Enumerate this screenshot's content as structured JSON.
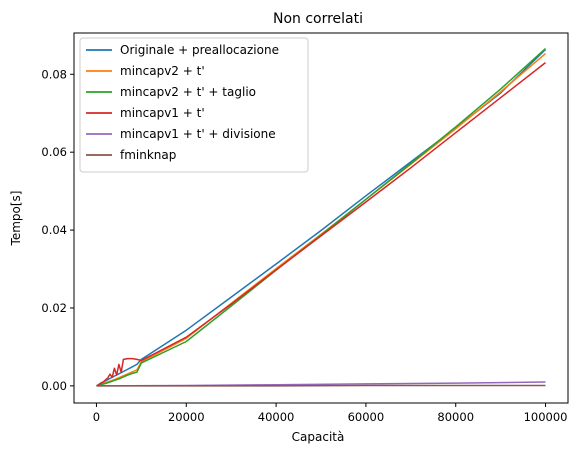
{
  "chart_data": {
    "type": "line",
    "title": "Non correlati",
    "xlabel": "Capacità",
    "ylabel": "Tempo[s]",
    "xlim": [
      -5000,
      105000
    ],
    "ylim": [
      -0.0044,
      0.0906
    ],
    "xticks": [
      0,
      20000,
      40000,
      60000,
      80000,
      100000
    ],
    "xtick_labels": [
      "0",
      "20000",
      "40000",
      "60000",
      "80000",
      "100000"
    ],
    "yticks": [
      0.0,
      0.02,
      0.04,
      0.06,
      0.08
    ],
    "ytick_labels": [
      "0.00",
      "0.02",
      "0.04",
      "0.06",
      "0.08"
    ],
    "grid": false,
    "legend_position": "top-left",
    "series": [
      {
        "name": "Originale + preallocazione",
        "color": "#1f77b4",
        "x": [
          0,
          1000,
          2000,
          3000,
          4000,
          5000,
          6000,
          7000,
          8000,
          9000,
          10000,
          20000,
          30000,
          40000,
          50000,
          60000,
          70000,
          80000,
          90000,
          100000
        ],
        "y": [
          0.0,
          0.0007,
          0.0013,
          0.0019,
          0.0025,
          0.0031,
          0.0037,
          0.0043,
          0.0049,
          0.0055,
          0.0068,
          0.0143,
          0.0228,
          0.0313,
          0.0399,
          0.0488,
          0.0575,
          0.0662,
          0.0752,
          0.0864
        ]
      },
      {
        "name": "mincapv2 + t'",
        "color": "#ff7f0e",
        "x": [
          0,
          1000,
          2000,
          3000,
          4000,
          5000,
          6000,
          7000,
          8000,
          9000,
          10000,
          20000,
          30000,
          40000,
          50000,
          60000,
          70000,
          80000,
          90000,
          100000
        ],
        "y": [
          0.0,
          0.0004,
          0.0008,
          0.0012,
          0.0016,
          0.0021,
          0.0026,
          0.0031,
          0.0036,
          0.0041,
          0.0062,
          0.0122,
          0.0212,
          0.0301,
          0.0389,
          0.0479,
          0.0569,
          0.066,
          0.0755,
          0.0853
        ]
      },
      {
        "name": "mincapv2 + t' + taglio",
        "color": "#2ca02c",
        "x": [
          0,
          1000,
          2000,
          3000,
          4000,
          5000,
          6000,
          7000,
          8000,
          9000,
          10000,
          20000,
          30000,
          40000,
          50000,
          60000,
          70000,
          80000,
          90000,
          100000
        ],
        "y": [
          0.0,
          0.0003,
          0.0006,
          0.001,
          0.0014,
          0.0018,
          0.0023,
          0.0028,
          0.0032,
          0.0035,
          0.0059,
          0.0114,
          0.0205,
          0.0297,
          0.0387,
          0.0479,
          0.0571,
          0.0665,
          0.0762,
          0.0866
        ]
      },
      {
        "name": "mincapv1 + t'",
        "color": "#d62728",
        "x": [
          0,
          500,
          1000,
          1500,
          2000,
          2500,
          3000,
          3500,
          4000,
          4500,
          5000,
          5500,
          6000,
          7000,
          8000,
          9000,
          10000,
          20000,
          30000,
          40000,
          50000,
          60000,
          70000,
          80000,
          90000,
          100000
        ],
        "y": [
          0.0,
          0.0003,
          0.0007,
          0.001,
          0.0015,
          0.002,
          0.003,
          0.0022,
          0.0045,
          0.0028,
          0.0055,
          0.0035,
          0.0068,
          0.007,
          0.007,
          0.0068,
          0.0065,
          0.0125,
          0.021,
          0.0298,
          0.0385,
          0.0472,
          0.056,
          0.065,
          0.074,
          0.083
        ]
      },
      {
        "name": "mincapv1 + t' + divisione",
        "color": "#9467bd",
        "x": [
          0,
          20000,
          40000,
          60000,
          80000,
          100000
        ],
        "y": [
          0.0,
          0.0001,
          0.0003,
          0.0005,
          0.0007,
          0.001
        ]
      },
      {
        "name": "fminknap",
        "color": "#8c564b",
        "x": [
          0,
          20000,
          40000,
          60000,
          80000,
          100000
        ],
        "y": [
          0.0,
          0.0,
          0.0,
          0.0001,
          0.0001,
          0.0001
        ]
      }
    ]
  }
}
